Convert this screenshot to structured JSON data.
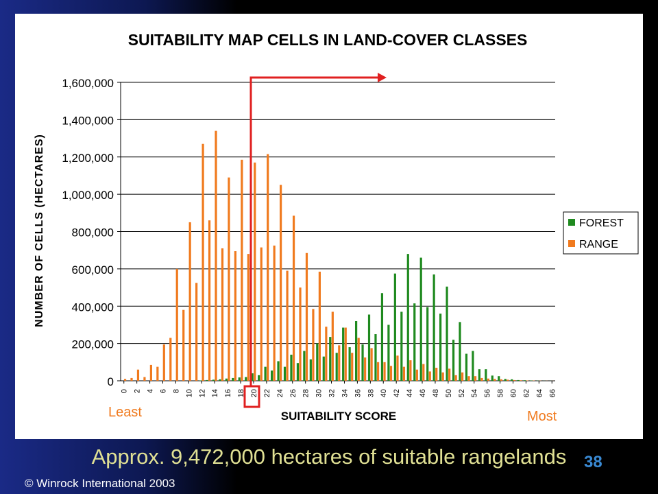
{
  "slide": {
    "caption": "Approx. 9,472,000 hectares of suitable rangelands",
    "page_number": "38",
    "copyright": "© Winrock International 2003",
    "least_label": "Least",
    "most_label": "Most"
  },
  "chart_data": {
    "type": "bar",
    "title": "SUITABILITY MAP CELLS IN LAND-COVER CLASSES",
    "xlabel": "SUITABILITY SCORE",
    "ylabel": "NUMBER OF CELLS (HECTARES)",
    "ylim": [
      0,
      1600000
    ],
    "yticks": [
      "0",
      "200,000",
      "400,000",
      "600,000",
      "800,000",
      "1,000,000",
      "1,200,000",
      "1,400,000",
      "1,600,000"
    ],
    "grid": true,
    "legend_position": "right",
    "categories": [
      "0",
      "1",
      "2",
      "3",
      "4",
      "5",
      "6",
      "7",
      "8",
      "9",
      "10",
      "11",
      "12",
      "13",
      "14",
      "15",
      "16",
      "17",
      "18",
      "19",
      "20",
      "21",
      "22",
      "23",
      "24",
      "25",
      "26",
      "27",
      "28",
      "29",
      "30",
      "31",
      "32",
      "33",
      "34",
      "35",
      "36",
      "37",
      "38",
      "39",
      "40",
      "41",
      "42",
      "43",
      "44",
      "45",
      "46",
      "47",
      "48",
      "49",
      "50",
      "51",
      "52",
      "53",
      "54",
      "55",
      "56",
      "57",
      "58",
      "59",
      "60",
      "61",
      "62",
      "63",
      "64",
      "65",
      "66"
    ],
    "x_tick_labels": [
      "0",
      "2",
      "4",
      "6",
      "8",
      "10",
      "12",
      "14",
      "16",
      "18",
      "20",
      "22",
      "24",
      "26",
      "28",
      "30",
      "32",
      "34",
      "36",
      "38",
      "40",
      "42",
      "44",
      "46",
      "48",
      "50",
      "52",
      "54",
      "56",
      "58",
      "60",
      "62",
      "64",
      "66"
    ],
    "series": [
      {
        "name": "FOREST",
        "color": "#1f8a1f",
        "values": [
          0,
          0,
          0,
          0,
          0,
          0,
          0,
          0,
          0,
          0,
          0,
          0,
          2000,
          4000,
          6000,
          8000,
          12000,
          15000,
          18000,
          20000,
          40000,
          30000,
          75000,
          55000,
          105000,
          75000,
          140000,
          95000,
          160000,
          115000,
          200000,
          130000,
          235000,
          150000,
          285000,
          180000,
          320000,
          195000,
          355000,
          250000,
          470000,
          300000,
          575000,
          370000,
          680000,
          415000,
          660000,
          395000,
          570000,
          360000,
          505000,
          220000,
          315000,
          145000,
          160000,
          62000,
          62000,
          28000,
          25000,
          10000,
          8000,
          4000,
          3000,
          1500,
          1000,
          500,
          300
        ]
      },
      {
        "name": "RANGE",
        "color": "#f07a1e",
        "values": [
          10000,
          15000,
          60000,
          20000,
          85000,
          75000,
          195000,
          230000,
          600000,
          380000,
          850000,
          525000,
          1270000,
          860000,
          1340000,
          710000,
          1090000,
          695000,
          1185000,
          680000,
          1170000,
          715000,
          1215000,
          725000,
          1050000,
          590000,
          885000,
          500000,
          685000,
          385000,
          585000,
          290000,
          370000,
          190000,
          285000,
          150000,
          230000,
          125000,
          175000,
          100000,
          100000,
          80000,
          135000,
          75000,
          110000,
          60000,
          90000,
          50000,
          70000,
          45000,
          65000,
          30000,
          45000,
          25000,
          25000,
          15000,
          12000,
          10000,
          8000,
          6000,
          4000,
          3000,
          2000,
          1500,
          1000,
          500,
          300
        ]
      }
    ],
    "highlight_category": "20"
  }
}
